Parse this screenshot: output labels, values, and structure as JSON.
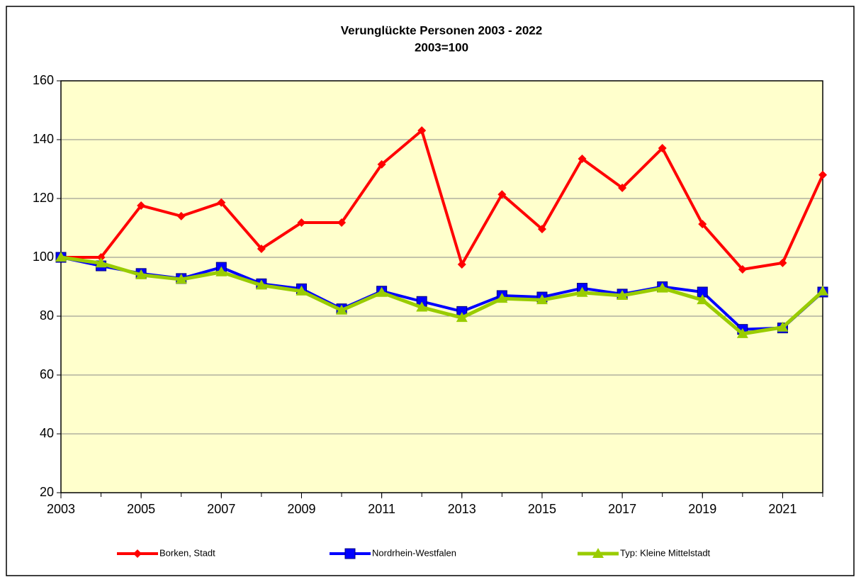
{
  "chart_data": {
    "type": "line",
    "title": "Verunglückte Personen 2003 - 2022",
    "subtitle": "2003=100",
    "x": [
      2003,
      2004,
      2005,
      2006,
      2007,
      2008,
      2009,
      2010,
      2011,
      2012,
      2013,
      2014,
      2015,
      2016,
      2017,
      2018,
      2019,
      2020,
      2021,
      2022
    ],
    "xlim": [
      2003,
      2022
    ],
    "xticks": [
      2003,
      2005,
      2007,
      2009,
      2011,
      2013,
      2015,
      2017,
      2019,
      2021
    ],
    "ylim": [
      20,
      160
    ],
    "yticks": [
      20,
      40,
      60,
      80,
      100,
      120,
      140,
      160
    ],
    "grid": true,
    "legend": "bottom",
    "series": [
      {
        "name": "Borken, Stadt",
        "color": "#ff0000",
        "marker": "diamond",
        "values": [
          100,
          100,
          117.6,
          114,
          118.6,
          102.9,
          111.8,
          111.8,
          131.6,
          143.1,
          97.6,
          121.4,
          109.6,
          133.5,
          123.6,
          137.1,
          111.3,
          95.9,
          98.1,
          128
        ]
      },
      {
        "name": "Nordrhein-Westfalen",
        "color": "#0000ff",
        "marker": "square",
        "values": [
          100,
          97.1,
          94.5,
          92.8,
          96.6,
          91,
          89.3,
          82.5,
          88.5,
          85,
          81.6,
          87,
          86.5,
          89.5,
          87.5,
          90,
          88.2,
          75.5,
          76,
          88.2
        ]
      },
      {
        "name": "Typ: Kleine Mittelstadt",
        "color": "#99cc00",
        "marker": "triangle",
        "values": [
          100,
          98,
          94,
          92.5,
          95,
          90.5,
          88.5,
          82,
          88,
          83,
          79.5,
          86,
          85.5,
          88,
          87,
          89.5,
          85.5,
          74,
          76.2,
          88.5
        ]
      }
    ]
  }
}
